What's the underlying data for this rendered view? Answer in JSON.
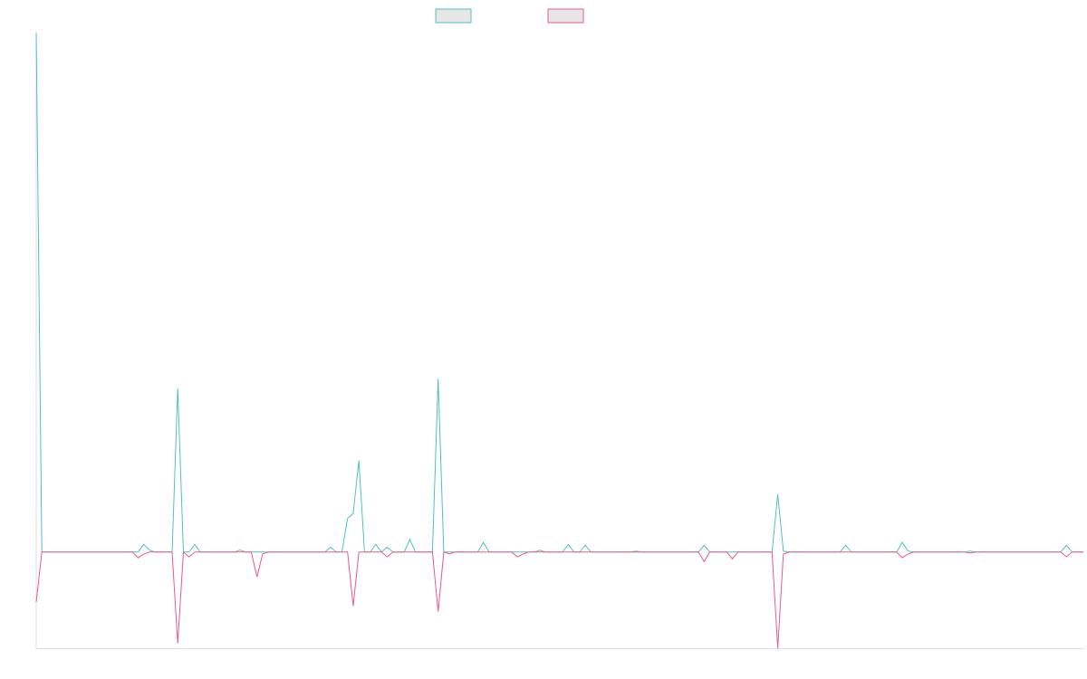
{
  "chart_data": {
    "type": "line",
    "title": "",
    "xlabel": "",
    "ylabel": "",
    "grid": false,
    "legend_placement": "top-center",
    "colors": {
      "series_a": "#4ec3be",
      "series_b": "#ee5a84",
      "axis": "#dcdcdc",
      "legend_fill": "#e6e6e6"
    },
    "x_count": 186,
    "ylim": [
      -100,
      540
    ],
    "series": [
      {
        "color": "#4ec3be",
        "points": [
          [
            0,
            540
          ],
          [
            18,
            0
          ],
          [
            19,
            8
          ],
          [
            20,
            2
          ],
          [
            25,
            170
          ],
          [
            27,
            0
          ],
          [
            28,
            8
          ],
          [
            36,
            2
          ],
          [
            52,
            5
          ],
          [
            55,
            35
          ],
          [
            56,
            40
          ],
          [
            57,
            95
          ],
          [
            60,
            8
          ],
          [
            62,
            5
          ],
          [
            66,
            13
          ],
          [
            71,
            180
          ],
          [
            79,
            10
          ],
          [
            89,
            2
          ],
          [
            94,
            8
          ],
          [
            97,
            7
          ],
          [
            106,
            1
          ],
          [
            118,
            7
          ],
          [
            131,
            60
          ],
          [
            132,
            1
          ],
          [
            143,
            7
          ],
          [
            153,
            10
          ],
          [
            154,
            1
          ],
          [
            165,
            1
          ],
          [
            182,
            7
          ]
        ]
      },
      {
        "color": "#ee5a84",
        "points": [
          [
            0,
            -52
          ],
          [
            18,
            -6
          ],
          [
            19,
            -2
          ],
          [
            25,
            -95
          ],
          [
            27,
            -5
          ],
          [
            39,
            -26
          ],
          [
            40,
            -2
          ],
          [
            56,
            -56
          ],
          [
            62,
            -5
          ],
          [
            71,
            -62
          ],
          [
            73,
            -2
          ],
          [
            85,
            -5
          ],
          [
            86,
            -2
          ],
          [
            118,
            -10
          ],
          [
            123,
            -7
          ],
          [
            131,
            -100
          ],
          [
            132,
            -2
          ],
          [
            153,
            -6
          ],
          [
            154,
            -2
          ],
          [
            165,
            -1
          ],
          [
            182,
            -5
          ]
        ]
      }
    ]
  }
}
